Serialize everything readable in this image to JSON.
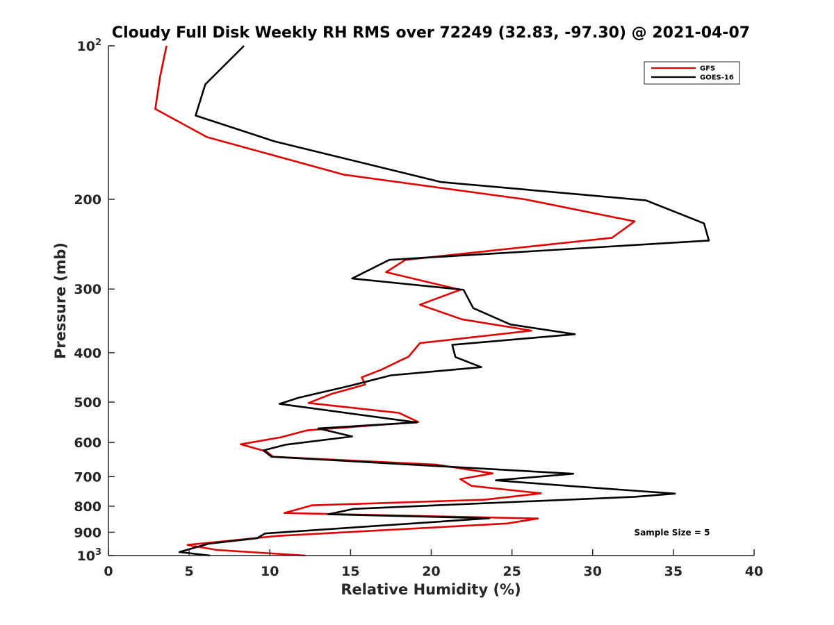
{
  "chart_data": {
    "type": "line",
    "title": "Cloudy Full Disk Weekly RH RMS over 72249 (32.83, -97.30) @ 2021-04-07",
    "xlabel": "Relative Humidity (%)",
    "ylabel": "Pressure (mb)",
    "xlim": [
      0,
      40
    ],
    "ylim": [
      100,
      1000
    ],
    "y_scale": "log",
    "y_reversed": true,
    "grid": false,
    "legend_position": "top-right",
    "x_ticks": [
      "0",
      "5",
      "10",
      "15",
      "20",
      "25",
      "30",
      "35",
      "40"
    ],
    "y_ticks": [
      {
        "value": 100,
        "base": "10",
        "exp": "2"
      },
      {
        "value": 200,
        "label": "200"
      },
      {
        "value": 300,
        "label": "300"
      },
      {
        "value": 400,
        "label": "400"
      },
      {
        "value": 500,
        "label": "500"
      },
      {
        "value": 600,
        "label": "600"
      },
      {
        "value": 700,
        "label": "700"
      },
      {
        "value": 800,
        "label": "800"
      },
      {
        "value": 900,
        "label": "900"
      },
      {
        "value": 1000,
        "base": "10",
        "exp": "3"
      }
    ],
    "series": [
      {
        "name": "GFS",
        "color": "#e00000",
        "points": [
          [
            3.6,
            100
          ],
          [
            3.2,
            115
          ],
          [
            2.9,
            133
          ],
          [
            6.1,
            151
          ],
          [
            14.6,
            179
          ],
          [
            25.8,
            200
          ],
          [
            32.6,
            221
          ],
          [
            31.2,
            238
          ],
          [
            18.4,
            263
          ],
          [
            17.2,
            278
          ],
          [
            21.8,
            301
          ],
          [
            19.3,
            322
          ],
          [
            21.9,
            344
          ],
          [
            26.2,
            362
          ],
          [
            19.3,
            383
          ],
          [
            18.6,
            407
          ],
          [
            16.9,
            432
          ],
          [
            15.7,
            447
          ],
          [
            15.9,
            462
          ],
          [
            13.8,
            482
          ],
          [
            12.4,
            502
          ],
          [
            18.0,
            525
          ],
          [
            19.2,
            547
          ],
          [
            12.3,
            568
          ],
          [
            10.7,
            586
          ],
          [
            8.2,
            605
          ],
          [
            9.8,
            625
          ],
          [
            10.2,
            640
          ],
          [
            20.3,
            663
          ],
          [
            23.8,
            690
          ],
          [
            21.8,
            708
          ],
          [
            22.5,
            730
          ],
          [
            26.8,
            755
          ],
          [
            23.3,
            777
          ],
          [
            12.6,
            797
          ],
          [
            10.9,
            825
          ],
          [
            26.6,
            846
          ],
          [
            24.7,
            865
          ],
          [
            10.5,
            915
          ],
          [
            4.9,
            953
          ],
          [
            6.7,
            975
          ],
          [
            12.2,
            1000
          ]
        ]
      },
      {
        "name": "GOES-16",
        "color": "#000000",
        "points": [
          [
            8.4,
            100
          ],
          [
            6.0,
            119
          ],
          [
            5.4,
            137
          ],
          [
            10.3,
            154
          ],
          [
            20.6,
            185
          ],
          [
            33.3,
            201
          ],
          [
            36.9,
            223
          ],
          [
            37.2,
            241
          ],
          [
            17.4,
            263
          ],
          [
            15.1,
            286
          ],
          [
            22.0,
            301
          ],
          [
            22.6,
            327
          ],
          [
            24.9,
            352
          ],
          [
            28.9,
            368
          ],
          [
            21.3,
            386
          ],
          [
            21.5,
            408
          ],
          [
            23.1,
            427
          ],
          [
            17.5,
            443
          ],
          [
            14.9,
            465
          ],
          [
            11.8,
            490
          ],
          [
            10.6,
            504
          ],
          [
            19.1,
            548
          ],
          [
            13.0,
            563
          ],
          [
            15.1,
            584
          ],
          [
            11.0,
            606
          ],
          [
            9.6,
            622
          ],
          [
            10.1,
            640
          ],
          [
            28.8,
            691
          ],
          [
            24.0,
            712
          ],
          [
            28.7,
            731
          ],
          [
            35.1,
            756
          ],
          [
            32.6,
            767
          ],
          [
            15.2,
            810
          ],
          [
            13.6,
            830
          ],
          [
            23.6,
            845
          ],
          [
            9.7,
            905
          ],
          [
            9.2,
            925
          ],
          [
            6.2,
            948
          ],
          [
            4.4,
            984
          ],
          [
            6.3,
            1000
          ]
        ]
      }
    ],
    "annotation": "Sample Size = 5"
  }
}
